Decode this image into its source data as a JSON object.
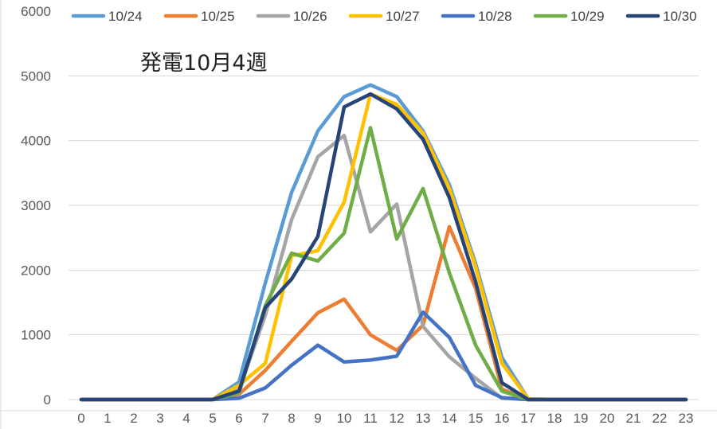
{
  "chart_data": {
    "type": "line",
    "title": "発電10月4週",
    "xlabel": "",
    "ylabel": "",
    "ylim": [
      0,
      6000
    ],
    "yticks": [
      0,
      1000,
      2000,
      3000,
      4000,
      5000,
      6000
    ],
    "grid": true,
    "legend_position": "top",
    "categories": [
      "0",
      "1",
      "2",
      "3",
      "4",
      "5",
      "6",
      "7",
      "8",
      "9",
      "10",
      "11",
      "12",
      "13",
      "14",
      "15",
      "16",
      "17",
      "18",
      "19",
      "20",
      "21",
      "22",
      "23"
    ],
    "series": [
      {
        "name": "10/24",
        "color": "#5B9BD5",
        "values": [
          0,
          0,
          0,
          0,
          0,
          0,
          270,
          1800,
          3200,
          4150,
          4680,
          4860,
          4680,
          4150,
          3320,
          2100,
          650,
          10,
          0,
          0,
          0,
          0,
          0,
          0
        ]
      },
      {
        "name": "10/25",
        "color": "#ED7D31",
        "values": [
          0,
          0,
          0,
          0,
          0,
          0,
          80,
          450,
          900,
          1340,
          1550,
          1000,
          760,
          1150,
          2670,
          1720,
          160,
          0,
          0,
          0,
          0,
          0,
          0,
          0
        ]
      },
      {
        "name": "10/26",
        "color": "#A5A5A5",
        "values": [
          0,
          0,
          0,
          0,
          0,
          0,
          150,
          1300,
          2780,
          3750,
          4080,
          2590,
          3020,
          1130,
          660,
          330,
          20,
          0,
          0,
          0,
          0,
          0,
          0,
          0
        ]
      },
      {
        "name": "10/27",
        "color": "#FFC000",
        "values": [
          0,
          0,
          0,
          0,
          0,
          0,
          220,
          560,
          2220,
          2300,
          3050,
          4720,
          4560,
          4120,
          3260,
          2050,
          560,
          10,
          0,
          0,
          0,
          0,
          0,
          0
        ]
      },
      {
        "name": "10/28",
        "color": "#4472C4",
        "values": [
          0,
          0,
          0,
          0,
          0,
          0,
          20,
          180,
          530,
          840,
          580,
          610,
          670,
          1350,
          960,
          220,
          30,
          0,
          0,
          0,
          0,
          0,
          0,
          0
        ]
      },
      {
        "name": "10/29",
        "color": "#70AD47",
        "values": [
          0,
          0,
          0,
          0,
          0,
          0,
          100,
          1450,
          2260,
          2140,
          2570,
          4200,
          2480,
          3260,
          1960,
          840,
          130,
          0,
          0,
          0,
          0,
          0,
          0,
          0
        ]
      },
      {
        "name": "10/30",
        "color": "#264478",
        "values": [
          0,
          0,
          0,
          0,
          0,
          0,
          130,
          1420,
          1860,
          2520,
          4520,
          4720,
          4490,
          4020,
          3120,
          1820,
          260,
          0,
          0,
          0,
          0,
          0,
          0,
          0
        ]
      }
    ]
  }
}
